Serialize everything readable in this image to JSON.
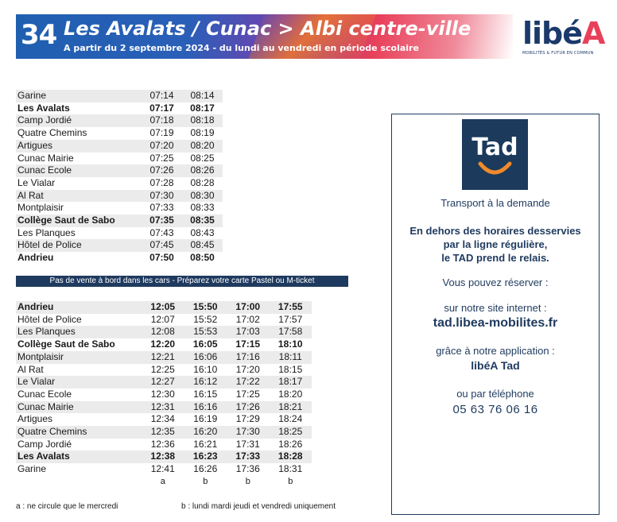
{
  "header": {
    "line_number": "34",
    "title": "Les Avalats / Cunac > Albi centre-ville",
    "subtitle": "A partir du 2 septembre 2024 - du lundi au vendredi en période scolaire"
  },
  "logo": {
    "word_main": "libé",
    "word_accent": "A",
    "tagline": "MOBILITÉS & FUTUR EN COMMUN"
  },
  "timetable_outbound": {
    "rows": [
      {
        "stop": "Garine",
        "times": [
          "07:14",
          "08:14"
        ],
        "bold": false
      },
      {
        "stop": "Les Avalats",
        "times": [
          "07:17",
          "08:17"
        ],
        "bold": true
      },
      {
        "stop": "Camp Jordié",
        "times": [
          "07:18",
          "08:18"
        ],
        "bold": false
      },
      {
        "stop": "Quatre Chemins",
        "times": [
          "07:19",
          "08:19"
        ],
        "bold": false
      },
      {
        "stop": "Artigues",
        "times": [
          "07:20",
          "08:20"
        ],
        "bold": false
      },
      {
        "stop": "Cunac Mairie",
        "times": [
          "07:25",
          "08:25"
        ],
        "bold": false
      },
      {
        "stop": "Cunac Ecole",
        "times": [
          "07:26",
          "08:26"
        ],
        "bold": false
      },
      {
        "stop": "Le Vialar",
        "times": [
          "07:28",
          "08:28"
        ],
        "bold": false
      },
      {
        "stop": "Al Rat",
        "times": [
          "07:30",
          "08:30"
        ],
        "bold": false
      },
      {
        "stop": "Montplaisir",
        "times": [
          "07:33",
          "08:33"
        ],
        "bold": false
      },
      {
        "stop": "Collège Saut de Sabo",
        "times": [
          "07:35",
          "08:35"
        ],
        "bold": true
      },
      {
        "stop": "Les Planques",
        "times": [
          "07:43",
          "08:43"
        ],
        "bold": false
      },
      {
        "stop": "Hôtel de Police",
        "times": [
          "07:45",
          "08:45"
        ],
        "bold": false
      },
      {
        "stop": "Andrieu",
        "times": [
          "07:50",
          "08:50"
        ],
        "bold": true
      }
    ]
  },
  "sale_notice": "Pas de vente à bord dans les cars - Préparez votre carte Pastel ou M-ticket",
  "timetable_return": {
    "rows": [
      {
        "stop": "Andrieu",
        "times": [
          "12:05",
          "15:50",
          "17:00",
          "17:55"
        ],
        "bold": true
      },
      {
        "stop": "Hôtel de Police",
        "times": [
          "12:07",
          "15:52",
          "17:02",
          "17:57"
        ],
        "bold": false
      },
      {
        "stop": "Les Planques",
        "times": [
          "12:08",
          "15:53",
          "17:03",
          "17:58"
        ],
        "bold": false
      },
      {
        "stop": "Collège Saut de Sabo",
        "times": [
          "12:20",
          "16:05",
          "17:15",
          "18:10"
        ],
        "bold": true
      },
      {
        "stop": "Montplaisir",
        "times": [
          "12:21",
          "16:06",
          "17:16",
          "18:11"
        ],
        "bold": false
      },
      {
        "stop": "Al Rat",
        "times": [
          "12:25",
          "16:10",
          "17:20",
          "18:15"
        ],
        "bold": false
      },
      {
        "stop": "Le Vialar",
        "times": [
          "12:27",
          "16:12",
          "17:22",
          "18:17"
        ],
        "bold": false
      },
      {
        "stop": "Cunac Ecole",
        "times": [
          "12:30",
          "16:15",
          "17:25",
          "18:20"
        ],
        "bold": false
      },
      {
        "stop": "Cunac Mairie",
        "times": [
          "12:31",
          "16:16",
          "17:26",
          "18:21"
        ],
        "bold": false
      },
      {
        "stop": "Artigues",
        "times": [
          "12:34",
          "16:19",
          "17:29",
          "18:24"
        ],
        "bold": false
      },
      {
        "stop": "Quatre Chemins",
        "times": [
          "12:35",
          "16:20",
          "17:30",
          "18:25"
        ],
        "bold": false
      },
      {
        "stop": "Camp Jordié",
        "times": [
          "12:36",
          "16:21",
          "17:31",
          "18:26"
        ],
        "bold": false
      },
      {
        "stop": "Les Avalats",
        "times": [
          "12:38",
          "16:23",
          "17:33",
          "18:28"
        ],
        "bold": true
      },
      {
        "stop": "Garine",
        "times": [
          "12:41",
          "16:26",
          "17:36",
          "18:31"
        ],
        "bold": false
      }
    ],
    "notes": [
      "a",
      "b",
      "b",
      "b"
    ]
  },
  "footnotes": {
    "a": "a : ne circule que le mercredi",
    "b": "b : lundi mardi jeudi et vendredi uniquement"
  },
  "tad_panel": {
    "logo_text": "Tad",
    "subtitle": "Transport à la demande",
    "info_line1": "En dehors des horaires desservies",
    "info_line2": "par la ligne régulière,",
    "info_line3": "le TAD prend le relais.",
    "reserve": "Vous pouvez réserver :",
    "site_label": "sur notre site internet :",
    "site_url": "tad.libea-mobilites.fr",
    "app_label": "grâce à notre application :",
    "app_name": "libéA Tad",
    "phone_label": "ou par téléphone",
    "phone_number": "05 63 76 06 16",
    "colors": {
      "navy": "#1b3a5c",
      "smile": "#f08a2c"
    }
  }
}
